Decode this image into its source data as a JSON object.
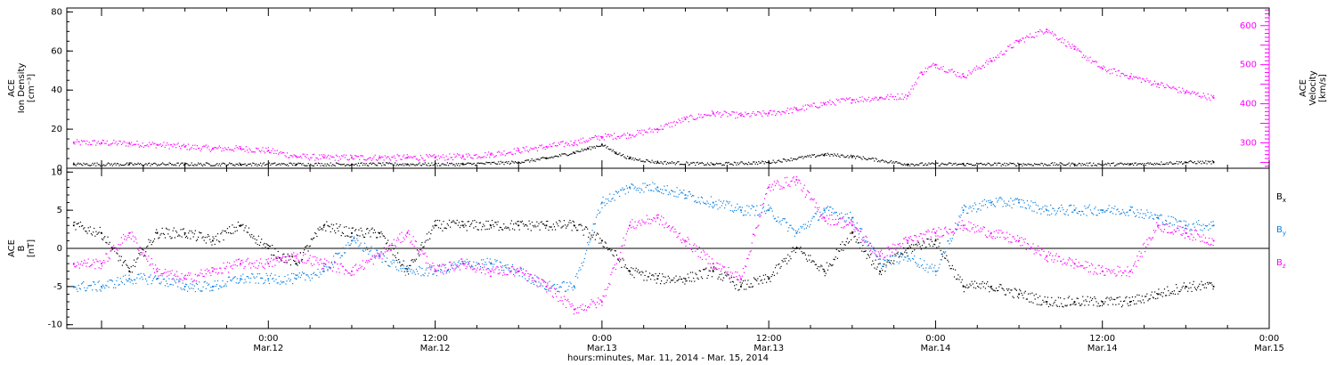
{
  "caption": "hours:minutes, Mar. 11, 2014 - Mar. 15, 2014",
  "chart_data": [
    {
      "type": "scatter",
      "panel": "plasma",
      "ylabel_left": [
        "ACE",
        "Ion Density",
        "[cm⁻³]"
      ],
      "ylabel_right": [
        "ACE",
        "Velocity",
        "[km/s]"
      ],
      "ylim_left": [
        0,
        82
      ],
      "ylim_right": [
        235,
        645
      ],
      "yticks_left": [
        "0",
        "20",
        "40",
        "60",
        "80"
      ],
      "yticks_right": [
        "300",
        "400",
        "500",
        "600"
      ],
      "xlim_hours": [
        -14.5,
        72
      ],
      "x_unit": "hours since 2014-03-12 00:00",
      "grid": false,
      "series": [
        {
          "name": "Ion Density",
          "axis": "left",
          "color": "#000000",
          "x": [
            -14,
            -10,
            -6,
            -2,
            2,
            6,
            10,
            14,
            18,
            20,
            22,
            23,
            24,
            25,
            26,
            28,
            32,
            36,
            40,
            42,
            46,
            50,
            54,
            58,
            62,
            66,
            68
          ],
          "y": [
            2,
            2,
            2,
            2,
            2,
            2,
            2,
            2,
            3,
            5,
            8,
            10,
            12,
            8,
            5,
            3,
            2,
            3,
            7,
            6,
            2,
            2,
            2,
            2,
            2,
            3,
            3
          ]
        },
        {
          "name": "Velocity",
          "axis": "right",
          "color": "#ff00ff",
          "x": [
            -14,
            -12,
            -10,
            -8,
            -6,
            -4,
            -2,
            0,
            2,
            4,
            6,
            8,
            10,
            12,
            14,
            16,
            18,
            20,
            22,
            24,
            26,
            28,
            30,
            32,
            34,
            36,
            38,
            40,
            42,
            44,
            46,
            47,
            48,
            50,
            52,
            54,
            56,
            58,
            60,
            62,
            64,
            66,
            68
          ],
          "y": [
            300,
            300,
            298,
            295,
            290,
            285,
            285,
            280,
            265,
            262,
            262,
            262,
            262,
            262,
            265,
            270,
            280,
            290,
            300,
            315,
            320,
            335,
            360,
            375,
            370,
            375,
            385,
            400,
            410,
            415,
            420,
            480,
            500,
            470,
            510,
            560,
            590,
            540,
            490,
            470,
            450,
            430,
            415
          ]
        }
      ]
    },
    {
      "type": "scatter",
      "panel": "imf",
      "ylabel_left": [
        "ACE",
        "B",
        "[nT]"
      ],
      "ylim": [
        -10.5,
        10.5
      ],
      "yticks": [
        "-10",
        "-5",
        "0",
        "5",
        "10"
      ],
      "zero_line": true,
      "xlim_hours": [
        -14.5,
        72
      ],
      "x_unit": "hours since 2014-03-12 00:00",
      "xticks": [
        {
          "h": 0,
          "time": "0:00",
          "date": "Mar.12"
        },
        {
          "h": 12,
          "time": "12:00",
          "date": "Mar.12"
        },
        {
          "h": 24,
          "time": "0:00",
          "date": "Mar.13"
        },
        {
          "h": 36,
          "time": "12:00",
          "date": "Mar.13"
        },
        {
          "h": 48,
          "time": "0:00",
          "date": "Mar.14"
        },
        {
          "h": 60,
          "time": "12:00",
          "date": "Mar.14"
        },
        {
          "h": 72,
          "time": "0:00",
          "date": "Mar.15"
        }
      ],
      "legend_position": "right",
      "series": [
        {
          "name": "Bx",
          "label_main": "B",
          "label_sub": "x",
          "color": "#000000",
          "x": [
            -14,
            -12,
            -10,
            -8,
            -6,
            -4,
            -2,
            0,
            2,
            4,
            6,
            8,
            10,
            12,
            14,
            16,
            18,
            20,
            22,
            24,
            26,
            28,
            30,
            32,
            34,
            36,
            38,
            40,
            42,
            44,
            46,
            48,
            50,
            52,
            54,
            56,
            58,
            60,
            62,
            64,
            66,
            68
          ],
          "y": [
            3,
            2,
            -3,
            2,
            2,
            1,
            3,
            0,
            -2,
            3,
            2,
            2,
            -3,
            3,
            3,
            3,
            3,
            3,
            3,
            1,
            -3,
            -4,
            -4,
            -3,
            -5,
            -4,
            0,
            -3,
            2,
            -3,
            0,
            1,
            -5,
            -5,
            -6,
            -7,
            -7,
            -7,
            -7,
            -6,
            -5,
            -5
          ]
        },
        {
          "name": "By",
          "label_main": "B",
          "label_sub": "y",
          "color": "#0a7fe0",
          "x": [
            -14,
            -12,
            -10,
            -8,
            -6,
            -4,
            -2,
            0,
            2,
            4,
            6,
            8,
            10,
            12,
            14,
            16,
            18,
            20,
            22,
            24,
            26,
            28,
            30,
            32,
            34,
            36,
            38,
            40,
            42,
            44,
            46,
            48,
            50,
            52,
            54,
            56,
            58,
            60,
            62,
            64,
            66,
            68
          ],
          "y": [
            -5,
            -5,
            -4,
            -4,
            -5,
            -5,
            -4,
            -4,
            -4,
            -3,
            1,
            -1,
            -3,
            -3,
            -2,
            -2,
            -3,
            -5,
            -5,
            6,
            8,
            8,
            7,
            6,
            5,
            5,
            2,
            5,
            4,
            -2,
            -1,
            -3,
            5,
            6,
            6,
            5,
            5,
            5,
            5,
            4,
            3,
            3
          ]
        },
        {
          "name": "Bz",
          "label_main": "B",
          "label_sub": "z",
          "color": "#ff00ff",
          "x": [
            -14,
            -12,
            -10,
            -8,
            -6,
            -4,
            -2,
            0,
            2,
            4,
            6,
            8,
            10,
            12,
            14,
            16,
            18,
            20,
            22,
            24,
            26,
            28,
            30,
            32,
            34,
            36,
            38,
            40,
            42,
            44,
            46,
            48,
            50,
            52,
            54,
            56,
            58,
            60,
            62,
            64,
            66,
            68
          ],
          "y": [
            -2,
            -2,
            2,
            -3,
            -4,
            -3,
            -2,
            -2,
            -1,
            -2,
            -3,
            -1,
            2,
            -3,
            -2,
            -3,
            -3,
            -5,
            -8,
            -7,
            3,
            4,
            1,
            -2,
            -4,
            8,
            9,
            4,
            3,
            -1,
            1,
            2,
            3,
            2,
            1,
            -1,
            -2,
            -3,
            -3,
            3,
            2,
            1
          ]
        }
      ]
    }
  ]
}
